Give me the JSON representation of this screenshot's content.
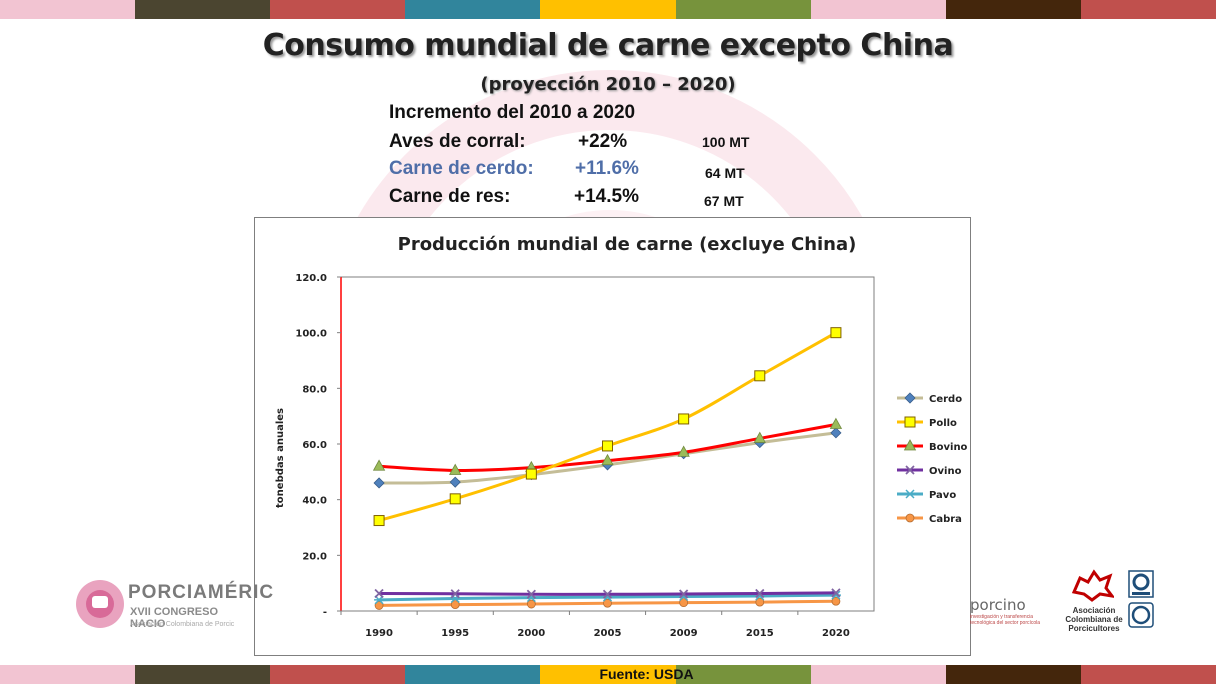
{
  "slide": {
    "title": "Consumo mundial de carne excepto China",
    "subtitle": "(proyección 2010 – 2020)",
    "increment_heading": "Incremento del 2010 a 2020",
    "rows": [
      {
        "label": "Aves de corral:",
        "value": "+22%",
        "mt": "100 MT"
      },
      {
        "label": "Carne de cerdo:",
        "value": "+11.6%",
        "mt": "64 MT"
      },
      {
        "label": "Carne de res:",
        "value": "+14.5%",
        "mt": "67 MT"
      }
    ],
    "source": "Fuente: USDA"
  },
  "colors": {
    "stripes": [
      "#f2c4d2",
      "#4b4530",
      "#c0504d",
      "#31859c",
      "#ffc000",
      "#77933c",
      "#f2c4d2",
      "#44260c",
      "#c0504d"
    ],
    "accent_pork": "#4f6ea8"
  },
  "logos": {
    "porciamerica_name": "PORCIAMÉRIC",
    "porciamerica_event": "XVII CONGRESO NACIO",
    "porciamerica_org": "Asociación Colombiana de Porcic",
    "porcino_name": "porcino",
    "porcino_tagline": "investigación y transferencia tecnológica del sector porcícola",
    "asociacion_name": "Asociación Colombiana de Porcicultores"
  },
  "chart_data": {
    "type": "line",
    "title": "Producción mundial de carne (excluye China)",
    "xlabel": "",
    "ylabel": "tonebdas anuales",
    "categories": [
      "1990",
      "1995",
      "2000",
      "2005",
      "2009",
      "2015",
      "2020"
    ],
    "ylim": [
      0,
      120
    ],
    "yticks": [
      "-",
      "20.0",
      "40.0",
      "60.0",
      "80.0",
      "100.0",
      "120.0"
    ],
    "grid": false,
    "legend_position": "right",
    "series": [
      {
        "name": "Cerdo",
        "color": "#c4bd97",
        "marker": "diamond",
        "marker_color": "#4f81bd",
        "values": [
          46,
          46.3,
          49,
          52.5,
          56.5,
          60.5,
          64
        ]
      },
      {
        "name": "Pollo",
        "color": "#ffc000",
        "marker": "square",
        "marker_color": "#ffff00",
        "values": [
          32.5,
          40.3,
          49.2,
          59.3,
          69,
          84.5,
          100
        ]
      },
      {
        "name": "Bovino",
        "color": "#ff0000",
        "marker": "triangle",
        "marker_color": "#9bbb59",
        "values": [
          52,
          50.5,
          51.5,
          54,
          57,
          62,
          67
        ]
      },
      {
        "name": "Ovino",
        "color": "#7030a0",
        "marker": "x",
        "marker_color": "#8064a2",
        "values": [
          6.3,
          6.2,
          6,
          6,
          6.1,
          6.3,
          6.5
        ]
      },
      {
        "name": "Pavo",
        "color": "#4bacc6",
        "marker": "star",
        "marker_color": "#4bacc6",
        "values": [
          4,
          4.5,
          4.8,
          5,
          5.2,
          5.4,
          5.7
        ]
      },
      {
        "name": "Cabra",
        "color": "#f79646",
        "marker": "circle",
        "marker_color": "#f79646",
        "values": [
          2,
          2.3,
          2.5,
          2.8,
          3,
          3.2,
          3.5
        ]
      }
    ]
  }
}
